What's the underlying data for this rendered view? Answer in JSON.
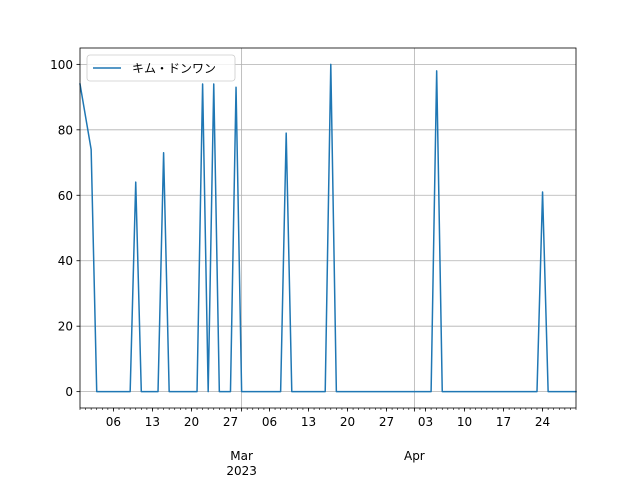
{
  "chart_data": {
    "type": "line",
    "title": "",
    "xlabel": "",
    "ylabel": "",
    "ylim": [
      -5,
      105
    ],
    "xlim": [
      "2023-01-31",
      "2023-04-30"
    ],
    "grid": true,
    "legend_position": "upper-left",
    "series": [
      {
        "name": "キム・ドンワン",
        "color": "#1f77b4",
        "points": [
          {
            "x": "2023-01-31",
            "y": 94
          },
          {
            "x": "2023-02-02",
            "y": 74
          },
          {
            "x": "2023-02-03",
            "y": 0
          },
          {
            "x": "2023-02-09",
            "y": 0
          },
          {
            "x": "2023-02-10",
            "y": 64
          },
          {
            "x": "2023-02-11",
            "y": 0
          },
          {
            "x": "2023-02-14",
            "y": 0
          },
          {
            "x": "2023-02-15",
            "y": 73
          },
          {
            "x": "2023-02-16",
            "y": 0
          },
          {
            "x": "2023-02-21",
            "y": 0
          },
          {
            "x": "2023-02-22",
            "y": 94
          },
          {
            "x": "2023-02-23",
            "y": 0
          },
          {
            "x": "2023-02-24",
            "y": 94
          },
          {
            "x": "2023-02-25",
            "y": 0
          },
          {
            "x": "2023-02-27",
            "y": 0
          },
          {
            "x": "2023-02-28",
            "y": 93
          },
          {
            "x": "2023-03-01",
            "y": 0
          },
          {
            "x": "2023-03-08",
            "y": 0
          },
          {
            "x": "2023-03-09",
            "y": 79
          },
          {
            "x": "2023-03-10",
            "y": 0
          },
          {
            "x": "2023-03-16",
            "y": 0
          },
          {
            "x": "2023-03-17",
            "y": 100
          },
          {
            "x": "2023-03-18",
            "y": 0
          },
          {
            "x": "2023-04-04",
            "y": 0
          },
          {
            "x": "2023-04-05",
            "y": 98
          },
          {
            "x": "2023-04-06",
            "y": 0
          },
          {
            "x": "2023-04-23",
            "y": 0
          },
          {
            "x": "2023-04-24",
            "y": 61
          },
          {
            "x": "2023-04-25",
            "y": 0
          },
          {
            "x": "2023-04-30",
            "y": 0
          }
        ]
      }
    ],
    "y_ticks": [
      0,
      20,
      40,
      60,
      80,
      100
    ],
    "x_major_ticks": [
      {
        "date": "2023-03-01",
        "label": "Mar",
        "sublabel": "2023"
      },
      {
        "date": "2023-04-01",
        "label": "Apr",
        "sublabel": ""
      }
    ],
    "x_minor_ticks": [
      {
        "date": "2023-02-06",
        "label": "06"
      },
      {
        "date": "2023-02-13",
        "label": "13"
      },
      {
        "date": "2023-02-20",
        "label": "20"
      },
      {
        "date": "2023-02-27",
        "label": "27"
      },
      {
        "date": "2023-03-06",
        "label": "06"
      },
      {
        "date": "2023-03-13",
        "label": "13"
      },
      {
        "date": "2023-03-20",
        "label": "20"
      },
      {
        "date": "2023-03-27",
        "label": "27"
      },
      {
        "date": "2023-04-03",
        "label": "03"
      },
      {
        "date": "2023-04-10",
        "label": "10"
      },
      {
        "date": "2023-04-17",
        "label": "17"
      },
      {
        "date": "2023-04-24",
        "label": "24"
      }
    ]
  }
}
